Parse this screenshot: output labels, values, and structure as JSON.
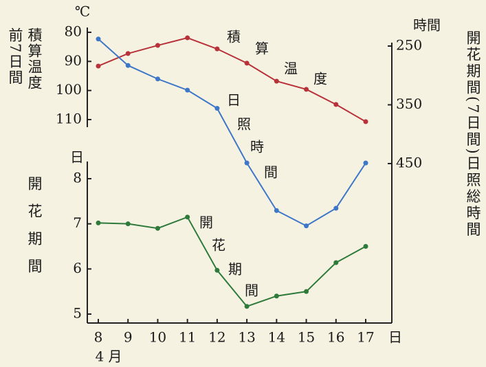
{
  "chart_data": {
    "type": "line",
    "x": [
      8,
      9,
      10,
      11,
      12,
      13,
      14,
      15,
      16,
      17
    ],
    "xlim": [
      8,
      17
    ],
    "xticks": [
      8,
      9,
      10,
      11,
      12,
      13,
      14,
      15,
      16,
      17
    ],
    "x_unit": "日",
    "x_sublabel": "4 月",
    "axes": [
      {
        "title": [
          "前7日間",
          "積算温度"
        ],
        "unit": "℃",
        "ylim": [
          80,
          110
        ],
        "yticks": [
          80,
          90,
          100,
          110
        ],
        "inverted": true,
        "side": "left"
      },
      {
        "title": [
          "開花期間"
        ],
        "unit": "日",
        "ylim": [
          5,
          8
        ],
        "yticks": [
          5,
          6,
          7,
          8
        ],
        "inverted": false,
        "side": "left"
      },
      {
        "title": [
          "開花期間(7日間)日照総時間"
        ],
        "unit": "時間",
        "ylim": [
          250,
          450
        ],
        "yticks": [
          250,
          350,
          450
        ],
        "inverted": true,
        "side": "right"
      }
    ],
    "series": [
      {
        "name": "積算温度",
        "color": "#b8323a",
        "axis": 0,
        "values": [
          91.6,
          87.3,
          84.5,
          81.9,
          85.7,
          90.6,
          96.8,
          99.6,
          104.8,
          110.7
        ]
      },
      {
        "name": "日照時間",
        "color": "#3f77c8",
        "axis": 2,
        "values": [
          238,
          283,
          306,
          325,
          356,
          449,
          530,
          556,
          526,
          449
        ]
      },
      {
        "name": "開花期間",
        "color": "#2d7a3a",
        "axis": 1,
        "values": [
          7.02,
          7.0,
          6.9,
          7.15,
          5.97,
          5.17,
          5.4,
          5.5,
          6.14,
          6.5
        ]
      }
    ]
  }
}
